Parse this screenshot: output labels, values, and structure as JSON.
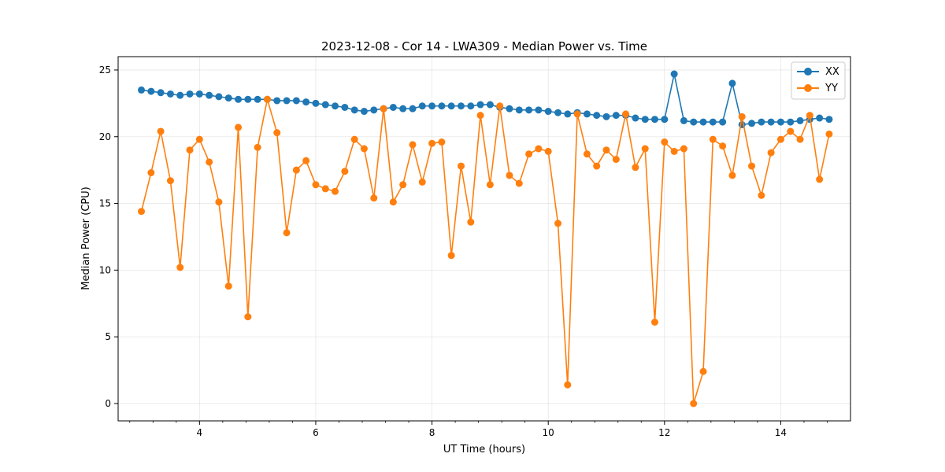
{
  "chart_data": {
    "type": "line",
    "title": "2023-12-08 - Cor 14 - LWA309 - Median Power vs. Time",
    "xlabel": "UT Time (hours)",
    "ylabel": "Median Power (CPU)",
    "xlim": [
      2.6,
      15.2
    ],
    "ylim": [
      -1.3,
      26.0
    ],
    "xticks": [
      4,
      6,
      8,
      10,
      12,
      14
    ],
    "yticks": [
      0,
      5,
      10,
      15,
      20,
      25
    ],
    "x_minor_step": 0.4,
    "grid": true,
    "legend_position": "top-right",
    "x": [
      3.0,
      3.167,
      3.333,
      3.5,
      3.667,
      3.833,
      4.0,
      4.167,
      4.333,
      4.5,
      4.667,
      4.833,
      5.0,
      5.167,
      5.333,
      5.5,
      5.667,
      5.833,
      6.0,
      6.167,
      6.333,
      6.5,
      6.667,
      6.833,
      7.0,
      7.167,
      7.333,
      7.5,
      7.667,
      7.833,
      8.0,
      8.167,
      8.333,
      8.5,
      8.667,
      8.833,
      9.0,
      9.167,
      9.333,
      9.5,
      9.667,
      9.833,
      10.0,
      10.167,
      10.333,
      10.5,
      10.667,
      10.833,
      11.0,
      11.167,
      11.333,
      11.5,
      11.667,
      11.833,
      12.0,
      12.167,
      12.333,
      12.5,
      12.667,
      12.833,
      13.0,
      13.167,
      13.333,
      13.5,
      13.667,
      13.833,
      14.0,
      14.167,
      14.333,
      14.5,
      14.667,
      14.833
    ],
    "series": [
      {
        "name": "XX",
        "color": "#1f77b4",
        "values": [
          23.5,
          23.4,
          23.3,
          23.2,
          23.1,
          23.2,
          23.2,
          23.1,
          23.0,
          22.9,
          22.8,
          22.8,
          22.8,
          22.8,
          22.7,
          22.7,
          22.7,
          22.6,
          22.5,
          22.4,
          22.3,
          22.2,
          22.0,
          21.9,
          22.0,
          22.1,
          22.2,
          22.1,
          22.1,
          22.3,
          22.3,
          22.3,
          22.3,
          22.3,
          22.3,
          22.4,
          22.4,
          22.2,
          22.1,
          22.0,
          22.0,
          22.0,
          21.9,
          21.8,
          21.7,
          21.8,
          21.7,
          21.6,
          21.5,
          21.6,
          21.6,
          21.4,
          21.3,
          21.3,
          21.3,
          24.7,
          21.2,
          21.1,
          21.1,
          21.1,
          21.1,
          24.0,
          20.9,
          21.0,
          21.1,
          21.1,
          21.1,
          21.1,
          21.2,
          21.3,
          21.4,
          21.3
        ]
      },
      {
        "name": "YY",
        "color": "#ff7f0e",
        "values": [
          14.4,
          17.3,
          20.4,
          16.7,
          10.2,
          19.0,
          19.8,
          18.1,
          15.1,
          8.8,
          20.7,
          6.5,
          19.2,
          22.8,
          20.3,
          12.8,
          17.5,
          18.2,
          16.4,
          16.1,
          15.9,
          17.4,
          19.8,
          19.1,
          15.4,
          22.1,
          15.1,
          16.4,
          19.4,
          16.6,
          19.5,
          19.6,
          11.1,
          17.8,
          13.6,
          21.6,
          16.4,
          22.3,
          17.1,
          16.5,
          18.7,
          19.1,
          18.9,
          13.5,
          1.4,
          21.7,
          18.7,
          17.8,
          19.0,
          18.3,
          21.7,
          17.7,
          19.1,
          6.1,
          19.6,
          18.9,
          19.1,
          0.0,
          2.4,
          19.8,
          19.3,
          17.1,
          21.5,
          17.8,
          15.6,
          18.8,
          19.8,
          20.4,
          19.8,
          21.6,
          16.8,
          20.2
        ]
      }
    ]
  }
}
